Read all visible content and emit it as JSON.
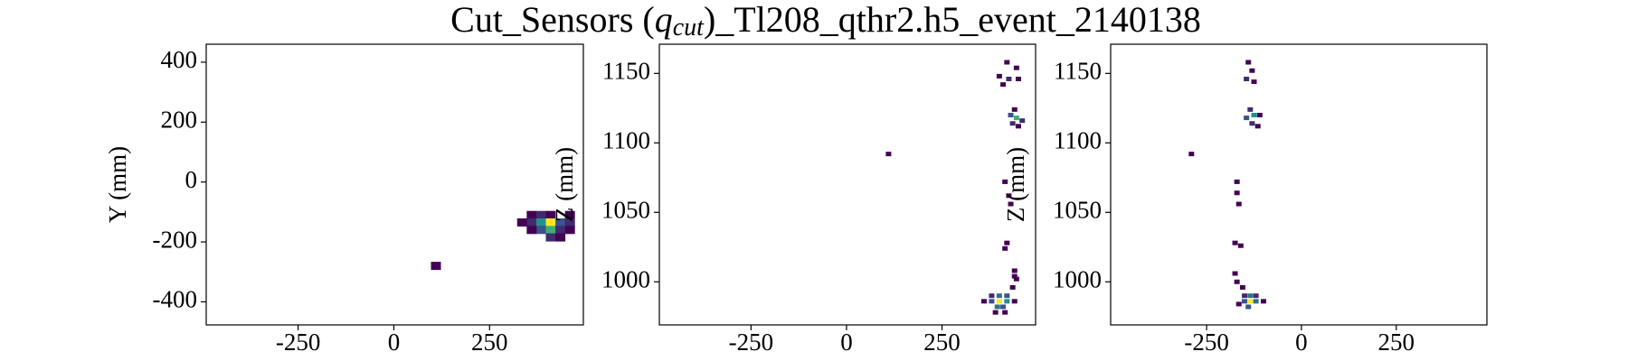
{
  "title": [
    "Cut_Sensors (",
    "q",
    "cut",
    ")_Tl208_qthr2.h5_event_2140138"
  ],
  "chart_data": [
    {
      "type": "heatmap",
      "ylabel": "Y (mm)",
      "xlim": [
        -490,
        495
      ],
      "ylim": [
        -477,
        460
      ],
      "xticks": [
        -250,
        0,
        250
      ],
      "yticks": [
        -400,
        -200,
        0,
        200,
        400
      ],
      "x": [
        110,
        360,
        385,
        410,
        360,
        385,
        410,
        435,
        385,
        410,
        435,
        410,
        435,
        460,
        460,
        460,
        360,
        335
      ],
      "y": [
        -280,
        -110,
        -110,
        -110,
        -135,
        -135,
        -135,
        -135,
        -160,
        -160,
        -160,
        -185,
        -185,
        -110,
        -135,
        -160,
        -160,
        -135
      ],
      "values": [
        1,
        1,
        2,
        1,
        2,
        5,
        9,
        3,
        3,
        6,
        2,
        2,
        1,
        1,
        2,
        1,
        1,
        1
      ]
    },
    {
      "type": "heatmap",
      "ylabel": "Z (mm)",
      "xlim": [
        -490,
        495
      ],
      "ylim": [
        969,
        1171
      ],
      "xticks": [
        -250,
        0,
        250
      ],
      "yticks": [
        1000,
        1050,
        1100,
        1150
      ],
      "x": [
        110,
        420,
        445,
        400,
        425,
        450,
        410,
        440,
        430,
        445,
        460,
        435,
        450,
        415,
        425,
        430,
        420,
        415,
        440,
        445,
        435,
        440,
        380,
        400,
        420,
        380,
        400,
        420,
        395,
        410,
        390,
        415,
        360,
        440
      ],
      "y": [
        1092,
        1158,
        1154,
        1148,
        1146,
        1146,
        1142,
        1124,
        1120,
        1118,
        1116,
        1114,
        1112,
        1072,
        1062,
        1056,
        1028,
        1024,
        1008,
        1002,
        996,
        1004,
        990,
        990,
        990,
        986,
        986,
        986,
        982,
        982,
        978,
        978,
        986,
        986
      ],
      "values": [
        1,
        1,
        1,
        1,
        2,
        1,
        1,
        1,
        3,
        6,
        2,
        2,
        1,
        1,
        1,
        1,
        1,
        1,
        1,
        1,
        1,
        1,
        2,
        4,
        3,
        3,
        9,
        5,
        4,
        3,
        1,
        1,
        1,
        1
      ]
    },
    {
      "type": "heatmap",
      "ylabel": "Z (mm)",
      "xlim": [
        -503,
        489
      ],
      "ylim": [
        969,
        1171
      ],
      "xticks": [
        -250,
        0,
        250
      ],
      "yticks": [
        1000,
        1050,
        1100,
        1150
      ],
      "x": [
        -290,
        -140,
        -130,
        -145,
        -125,
        -135,
        -125,
        -145,
        -110,
        -130,
        -115,
        -170,
        -170,
        -165,
        -175,
        -160,
        -175,
        -170,
        -155,
        -150,
        -135,
        -120,
        -150,
        -135,
        -120,
        -140,
        -100,
        -165
      ],
      "y": [
        1092,
        1158,
        1152,
        1146,
        1144,
        1124,
        1120,
        1118,
        1120,
        1114,
        1112,
        1072,
        1064,
        1056,
        1028,
        1026,
        1006,
        1000,
        996,
        990,
        990,
        990,
        986,
        986,
        986,
        982,
        986,
        984
      ],
      "values": [
        1,
        1,
        1,
        2,
        1,
        2,
        5,
        3,
        1,
        2,
        1,
        1,
        1,
        1,
        1,
        1,
        1,
        1,
        1,
        2,
        4,
        2,
        3,
        9,
        4,
        3,
        1,
        1
      ]
    }
  ]
}
